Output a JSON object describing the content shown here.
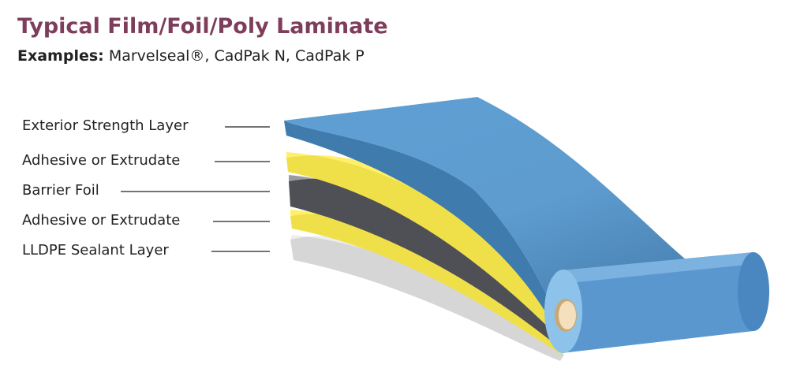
{
  "header": {
    "title": "Typical Film/Foil/Poly Laminate",
    "examples_label": "Examples:",
    "examples_text": "Marvelseal®, CadPak N, CadPak P"
  },
  "layers": [
    {
      "label": "Exterior Strength Layer"
    },
    {
      "label": "Adhesive or Extrudate"
    },
    {
      "label": "Barrier Foil"
    },
    {
      "label": "Adhesive or Extrudate"
    },
    {
      "label": "LLDPE Sealant Layer"
    }
  ]
}
